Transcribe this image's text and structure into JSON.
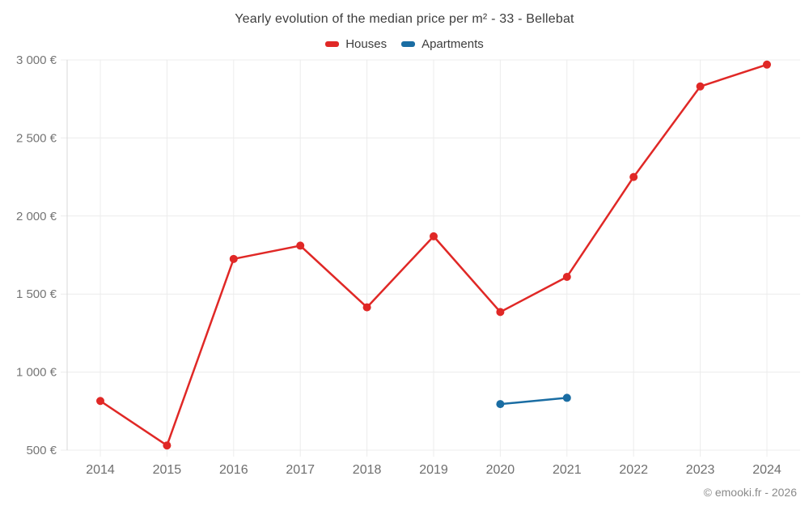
{
  "chart_data": {
    "type": "line",
    "title": "Yearly evolution of the median price per m² - 33 - Bellebat",
    "categories": [
      "2014",
      "2015",
      "2016",
      "2017",
      "2018",
      "2019",
      "2020",
      "2021",
      "2022",
      "2023",
      "2024"
    ],
    "series": [
      {
        "name": "Houses",
        "color": "#e02826",
        "values": [
          815,
          530,
          1725,
          1810,
          1415,
          1870,
          1385,
          1610,
          2250,
          2830,
          2970
        ]
      },
      {
        "name": "Apartments",
        "color": "#1a6da3",
        "values": [
          null,
          null,
          null,
          null,
          null,
          null,
          795,
          835,
          null,
          null,
          null
        ]
      }
    ],
    "xlabel": "",
    "ylabel": "",
    "ylim": [
      500,
      3000
    ],
    "yticks": [
      {
        "value": 500,
        "label": "500 €"
      },
      {
        "value": 1000,
        "label": "1 000 €"
      },
      {
        "value": 1500,
        "label": "1 500 €"
      },
      {
        "value": 2000,
        "label": "2 000 €"
      },
      {
        "value": 2500,
        "label": "2 500 €"
      },
      {
        "value": 3000,
        "label": "3 000 €"
      }
    ],
    "grid": true,
    "legend_position": "top",
    "colors": {
      "grid": "#ececec",
      "axis": "#d9d9d9",
      "tick_text": "#757575",
      "title_text": "#3d3d3d",
      "background": "#ffffff"
    }
  },
  "footer": {
    "copyright": "© emooki.fr - 2026"
  }
}
